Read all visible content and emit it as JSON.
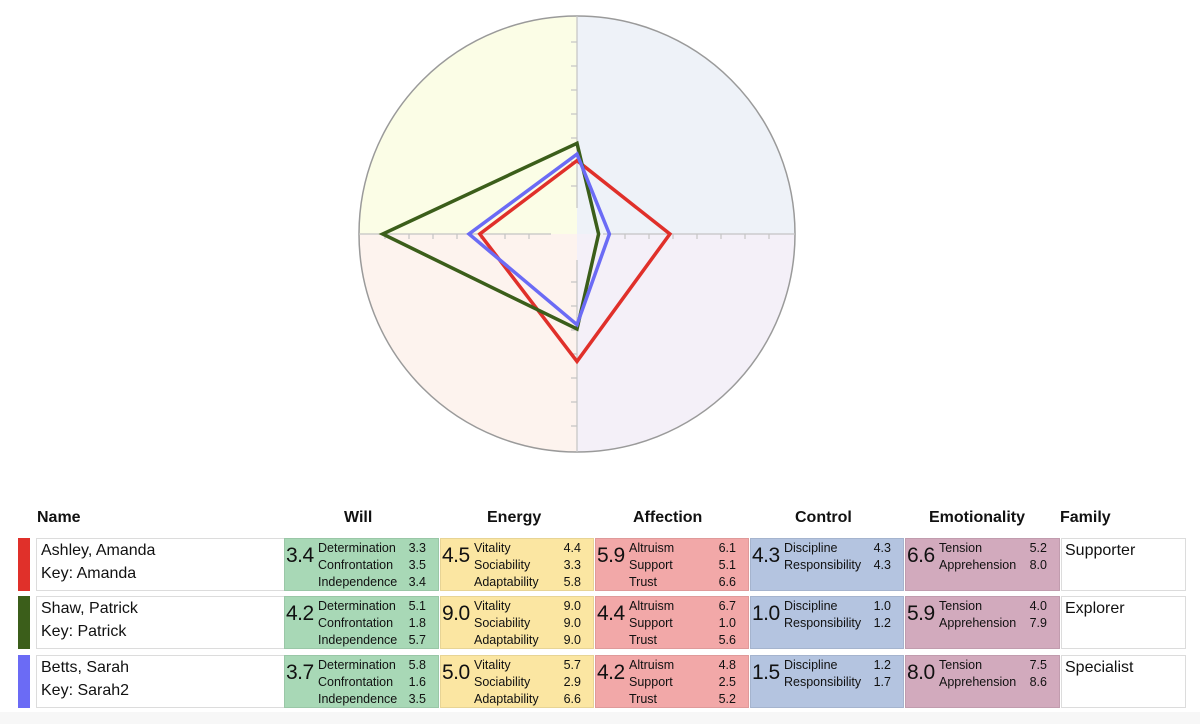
{
  "chart_data": {
    "type": "radar",
    "title": "",
    "axes": [
      {
        "name": "Will",
        "direction": "up"
      },
      {
        "name": "Energy",
        "direction": "left"
      },
      {
        "name": "Affection",
        "direction": "down"
      },
      {
        "name": "Control",
        "direction": "right"
      }
    ],
    "range": [
      0,
      10
    ],
    "ticks_per_axis": 8,
    "grid": false,
    "quadrant_tints": {
      "top_left": "#fbfde6",
      "top_right": "#eef2f8",
      "bottom_left": "#fdf3ee",
      "bottom_right": "#f4f0f8"
    },
    "series": [
      {
        "name": "Ashley, Amanda",
        "color": "#e0302a",
        "values": {
          "Will": 3.4,
          "Energy": 4.5,
          "Affection": 5.9,
          "Control": 4.3
        }
      },
      {
        "name": "Shaw, Patrick",
        "color": "#3b5e1a",
        "values": {
          "Will": 4.2,
          "Energy": 9.0,
          "Affection": 4.4,
          "Control": 1.0
        }
      },
      {
        "name": "Betts, Sarah",
        "color": "#6b6bf5",
        "values": {
          "Will": 3.7,
          "Energy": 5.0,
          "Affection": 4.2,
          "Control": 1.5
        }
      }
    ]
  },
  "table": {
    "headers": {
      "name": "Name",
      "will": "Will",
      "energy": "Energy",
      "affection": "Affection",
      "control": "Control",
      "emotionality": "Emotionality",
      "family": "Family"
    },
    "colors": {
      "will": "#a8d8b6",
      "energy": "#fbe6a2",
      "affection": "#f2a8a8",
      "control": "#b4c4e0",
      "emotionality": "#d2aabd"
    },
    "rows": [
      {
        "color": "#e0302a",
        "name": "Ashley, Amanda",
        "key": "Key: Amanda",
        "will": {
          "score": "3.4",
          "items": [
            [
              "Determination",
              "3.3"
            ],
            [
              "Confrontation",
              "3.5"
            ],
            [
              "Independence",
              "3.4"
            ]
          ]
        },
        "energy": {
          "score": "4.5",
          "items": [
            [
              "Vitality",
              "4.4"
            ],
            [
              "Sociability",
              "3.3"
            ],
            [
              "Adaptability",
              "5.8"
            ]
          ]
        },
        "affection": {
          "score": "5.9",
          "items": [
            [
              "Altruism",
              "6.1"
            ],
            [
              "Support",
              "5.1"
            ],
            [
              "Trust",
              "6.6"
            ]
          ]
        },
        "control": {
          "score": "4.3",
          "items": [
            [
              "Discipline",
              "4.3"
            ],
            [
              "Responsibility",
              "4.3"
            ]
          ]
        },
        "emotionality": {
          "score": "6.6",
          "items": [
            [
              "Tension",
              "5.2"
            ],
            [
              "Apprehension",
              "8.0"
            ]
          ]
        },
        "family": "Supporter"
      },
      {
        "color": "#3b5e1a",
        "name": "Shaw, Patrick",
        "key": "Key: Patrick",
        "will": {
          "score": "4.2",
          "items": [
            [
              "Determination",
              "5.1"
            ],
            [
              "Confrontation",
              "1.8"
            ],
            [
              "Independence",
              "5.7"
            ]
          ]
        },
        "energy": {
          "score": "9.0",
          "items": [
            [
              "Vitality",
              "9.0"
            ],
            [
              "Sociability",
              "9.0"
            ],
            [
              "Adaptability",
              "9.0"
            ]
          ]
        },
        "affection": {
          "score": "4.4",
          "items": [
            [
              "Altruism",
              "6.7"
            ],
            [
              "Support",
              "1.0"
            ],
            [
              "Trust",
              "5.6"
            ]
          ]
        },
        "control": {
          "score": "1.0",
          "items": [
            [
              "Discipline",
              "1.0"
            ],
            [
              "Responsibility",
              "1.2"
            ]
          ]
        },
        "emotionality": {
          "score": "5.9",
          "items": [
            [
              "Tension",
              "4.0"
            ],
            [
              "Apprehension",
              "7.9"
            ]
          ]
        },
        "family": "Explorer"
      },
      {
        "color": "#6b6bf5",
        "name": "Betts, Sarah",
        "key": "Key: Sarah2",
        "will": {
          "score": "3.7",
          "items": [
            [
              "Determination",
              "5.8"
            ],
            [
              "Confrontation",
              "1.6"
            ],
            [
              "Independence",
              "3.5"
            ]
          ]
        },
        "energy": {
          "score": "5.0",
          "items": [
            [
              "Vitality",
              "5.7"
            ],
            [
              "Sociability",
              "2.9"
            ],
            [
              "Adaptability",
              "6.6"
            ]
          ]
        },
        "affection": {
          "score": "4.2",
          "items": [
            [
              "Altruism",
              "4.8"
            ],
            [
              "Support",
              "2.5"
            ],
            [
              "Trust",
              "5.2"
            ]
          ]
        },
        "control": {
          "score": "1.5",
          "items": [
            [
              "Discipline",
              "1.2"
            ],
            [
              "Responsibility",
              "1.7"
            ]
          ]
        },
        "emotionality": {
          "score": "8.0",
          "items": [
            [
              "Tension",
              "7.5"
            ],
            [
              "Apprehension",
              "8.6"
            ]
          ]
        },
        "family": "Specialist"
      }
    ]
  }
}
